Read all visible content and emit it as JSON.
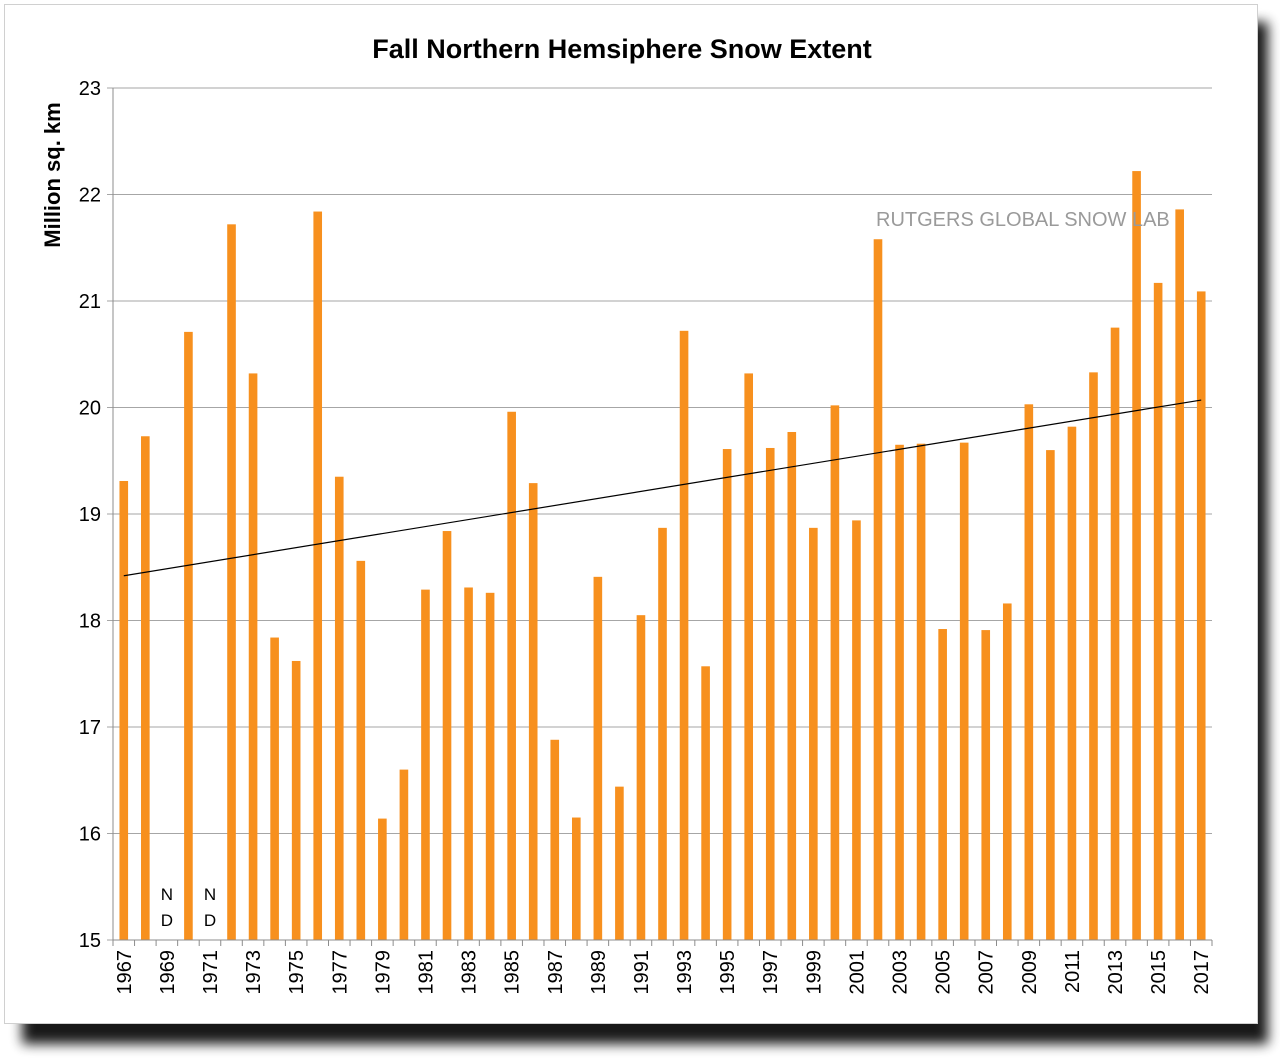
{
  "chart_data": {
    "type": "bar",
    "title": "Fall Northern Hemsiphere Snow Extent",
    "xlabel": "",
    "ylabel": "Million sq. km",
    "ylim": [
      15,
      23
    ],
    "yticks": [
      15,
      16,
      17,
      18,
      19,
      20,
      21,
      22,
      23
    ],
    "grid": true,
    "legend": "none",
    "watermark": "RUTGERS GLOBAL SNOW LAB",
    "no_data_label": [
      "N",
      "D"
    ],
    "bar_color": "#f7901e",
    "trend_color": "#000000",
    "trendline": {
      "start": [
        1967,
        18.42
      ],
      "end": [
        2017,
        20.07
      ]
    },
    "categories": [
      "1967",
      "1968",
      "1969",
      "1970",
      "1971",
      "1972",
      "1973",
      "1974",
      "1975",
      "1976",
      "1977",
      "1978",
      "1979",
      "1980",
      "1981",
      "1982",
      "1983",
      "1984",
      "1985",
      "1986",
      "1987",
      "1988",
      "1989",
      "1990",
      "1991",
      "1992",
      "1993",
      "1994",
      "1995",
      "1996",
      "1997",
      "1998",
      "1999",
      "2000",
      "2001",
      "2002",
      "2003",
      "2004",
      "2005",
      "2006",
      "2007",
      "2008",
      "2009",
      "2010",
      "2011",
      "2012",
      "2013",
      "2014",
      "2015",
      "2016",
      "2017"
    ],
    "x_tick_labels": [
      "1967",
      "1969",
      "1971",
      "1973",
      "1975",
      "1977",
      "1979",
      "1981",
      "1983",
      "1985",
      "1987",
      "1989",
      "1991",
      "1993",
      "1995",
      "1997",
      "1999",
      "2001",
      "2003",
      "2005",
      "2007",
      "2009",
      "2011",
      "2013",
      "2015",
      "2017"
    ],
    "values": [
      19.31,
      19.73,
      null,
      20.71,
      null,
      21.72,
      20.32,
      17.84,
      17.62,
      21.84,
      19.35,
      18.56,
      16.14,
      16.6,
      18.29,
      18.84,
      18.31,
      18.26,
      19.96,
      19.29,
      16.88,
      16.15,
      18.41,
      16.44,
      18.05,
      18.87,
      20.72,
      17.57,
      19.61,
      20.32,
      19.62,
      19.77,
      18.87,
      20.02,
      18.94,
      21.58,
      19.65,
      19.66,
      17.92,
      19.67,
      17.91,
      18.16,
      20.03,
      19.6,
      19.82,
      20.33,
      20.75,
      22.22,
      21.17,
      21.86,
      21.09
    ]
  }
}
